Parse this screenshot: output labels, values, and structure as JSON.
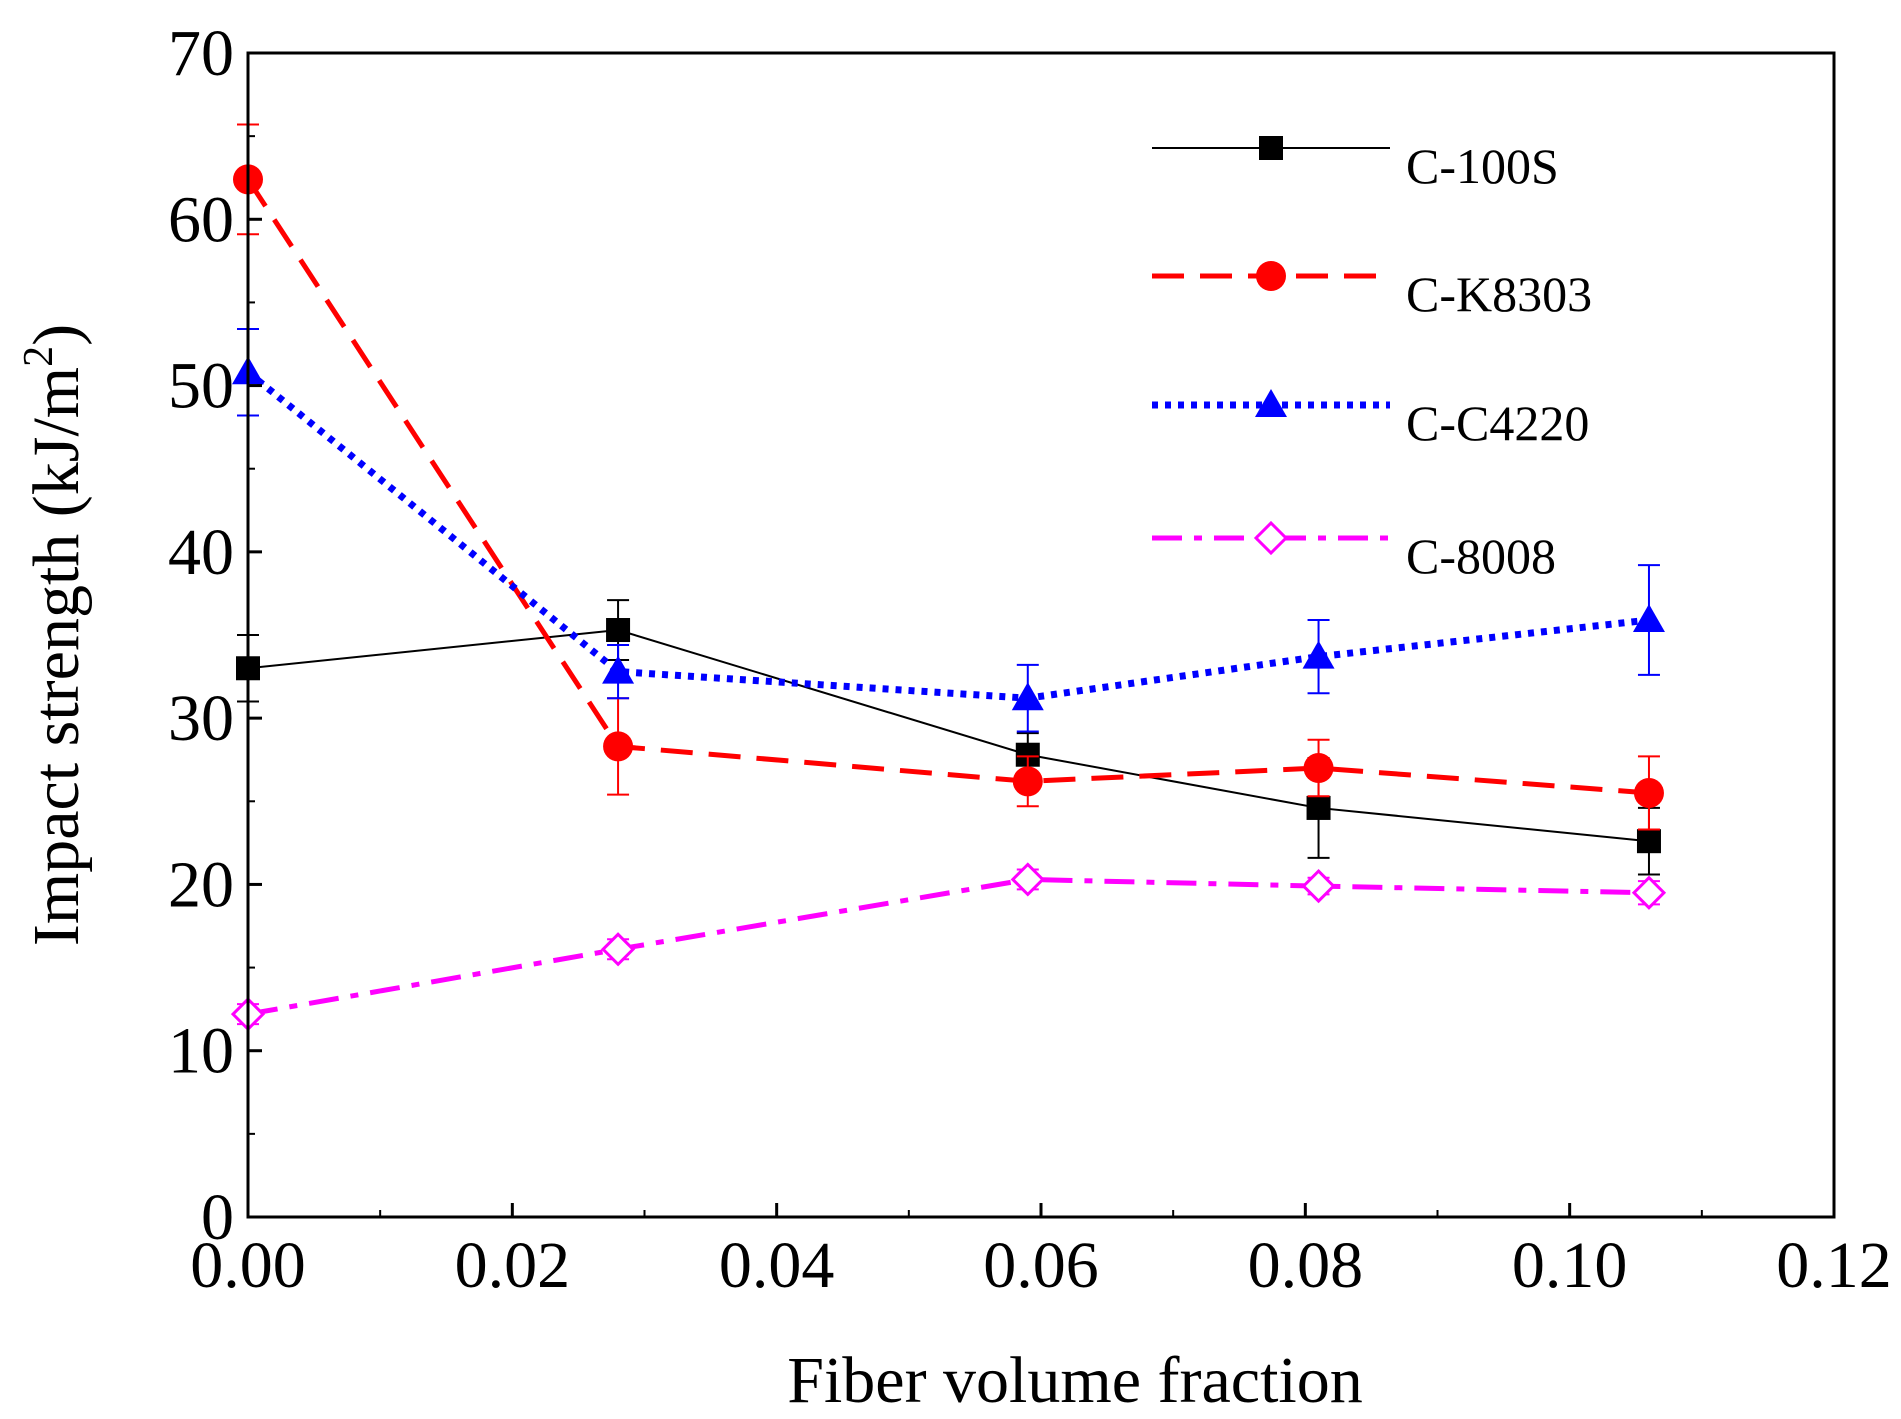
{
  "chart_data": {
    "type": "line",
    "title": "",
    "xlabel": "Fiber volume fraction",
    "ylabel": "Impact strength (kJ/m",
    "ylabel_superscript": "2",
    "ylabel_close": ")",
    "xlim": [
      0,
      0.12
    ],
    "ylim": [
      0,
      70
    ],
    "xticks": [
      "0.00",
      "0.02",
      "0.04",
      "0.06",
      "0.08",
      "0.10",
      "0.12"
    ],
    "yticks": [
      "0",
      "10",
      "20",
      "30",
      "40",
      "50",
      "60",
      "70"
    ],
    "grid": false,
    "legend_position": "top-right",
    "series": [
      {
        "name": "C-100S",
        "color": "#000000",
        "marker": "square",
        "line": "solid",
        "x": [
          0.0,
          0.028,
          0.059,
          0.081,
          0.106
        ],
        "values": [
          33.0,
          35.3,
          27.8,
          24.6,
          22.6
        ],
        "errors": [
          2.0,
          1.8,
          1.3,
          3.0,
          2.0
        ]
      },
      {
        "name": "C-K8303",
        "color": "#ff0000",
        "marker": "circle",
        "line": "dashed",
        "x": [
          0.0,
          0.028,
          0.059,
          0.081,
          0.106
        ],
        "values": [
          62.4,
          28.3,
          26.2,
          27.0,
          25.5
        ],
        "errors": [
          3.3,
          2.9,
          1.5,
          1.7,
          2.2
        ]
      },
      {
        "name": "C-C4220",
        "color": "#0000ff",
        "marker": "triangle",
        "line": "dotted",
        "x": [
          0.0,
          0.028,
          0.059,
          0.081,
          0.106
        ],
        "values": [
          50.8,
          32.8,
          31.2,
          33.7,
          35.9
        ],
        "errors": [
          2.6,
          1.6,
          2.0,
          2.2,
          3.3
        ]
      },
      {
        "name": "C-8008",
        "color": "#ff00ff",
        "marker": "diamond-open",
        "line": "dashdot",
        "x": [
          0.0,
          0.028,
          0.059,
          0.081,
          0.106
        ],
        "values": [
          12.2,
          16.1,
          20.3,
          19.9,
          19.5
        ],
        "errors": [
          0.6,
          0.6,
          0.6,
          0.5,
          0.7
        ]
      }
    ]
  }
}
